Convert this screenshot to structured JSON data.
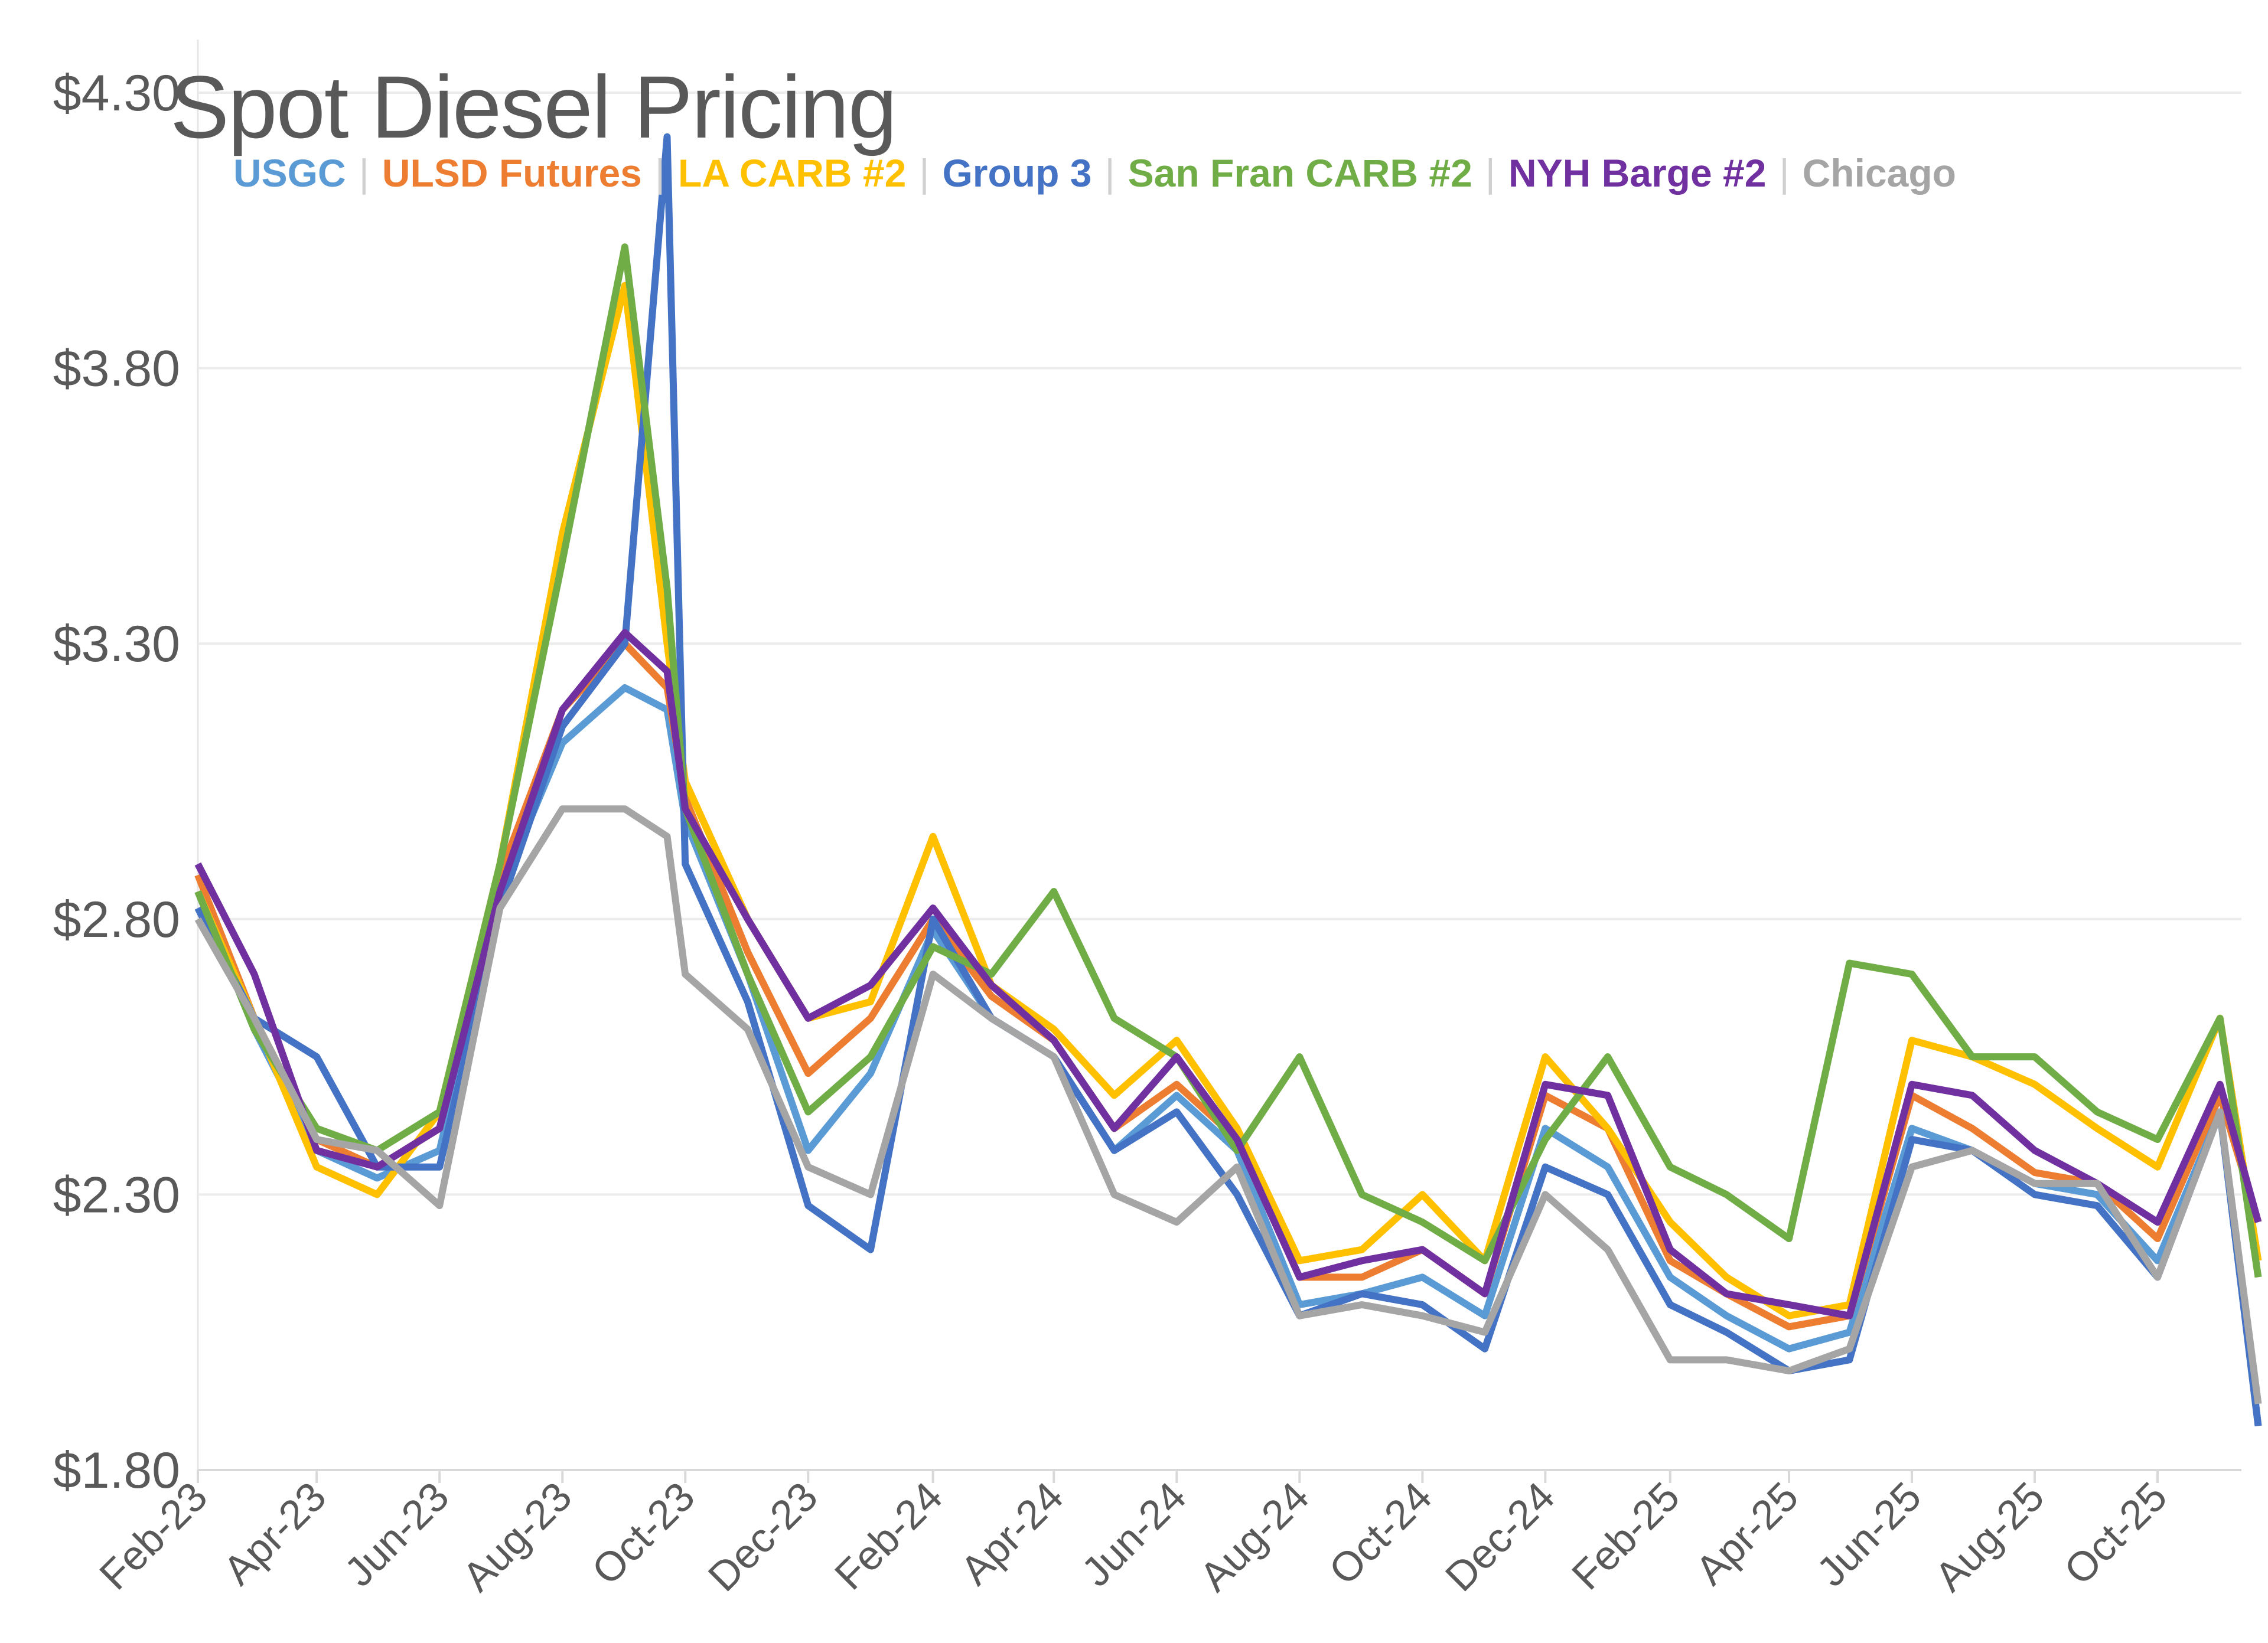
{
  "chart_data": {
    "type": "line",
    "title": "Spot Diesel Pricing",
    "xlabel": "",
    "ylabel": "",
    "ylim": [
      1.8,
      4.3
    ],
    "yticks": [
      "$1.80",
      "$2.30",
      "$2.80",
      "$3.30",
      "$3.80",
      "$4.30"
    ],
    "ytick_values": [
      1.8,
      2.3,
      2.8,
      3.3,
      3.8,
      4.3
    ],
    "xticks": [
      "Feb-23",
      "Apr-23",
      "Jun-23",
      "Aug-23",
      "Oct-23",
      "Dec-23",
      "Feb-24",
      "Apr-24",
      "Jun-24",
      "Aug-24",
      "Oct-24",
      "Dec-24",
      "Feb-25",
      "Apr-25",
      "Jun-25",
      "Aug-25",
      "Oct-25"
    ],
    "xtick_dates": [
      "2023-02-01",
      "2023-04-01",
      "2023-06-01",
      "2023-08-01",
      "2023-10-01",
      "2023-12-01",
      "2024-02-01",
      "2024-04-01",
      "2024-06-01",
      "2024-08-01",
      "2024-10-01",
      "2024-12-01",
      "2025-02-01",
      "2025-04-01",
      "2025-06-01",
      "2025-08-01",
      "2025-10-01"
    ],
    "grid": true,
    "legend_placement": "top-left",
    "x": [
      "2023-02-01",
      "2023-03-01",
      "2023-04-01",
      "2023-05-01",
      "2023-06-01",
      "2023-07-01",
      "2023-08-01",
      "2023-09-01",
      "2023-09-22",
      "2023-10-01",
      "2023-11-01",
      "2023-12-01",
      "2024-01-01",
      "2024-02-01",
      "2024-03-01",
      "2024-04-01",
      "2024-05-01",
      "2024-06-01",
      "2024-07-01",
      "2024-08-01",
      "2024-09-01",
      "2024-10-01",
      "2024-11-01",
      "2024-12-01",
      "2025-01-01",
      "2025-02-01",
      "2025-03-01",
      "2025-04-01",
      "2025-05-01",
      "2025-06-01",
      "2025-07-01",
      "2025-08-01",
      "2025-09-01",
      "2025-10-01",
      "2025-11-01",
      "2025-11-20"
    ],
    "series": [
      {
        "name": "USGC",
        "color": "#5B9BD5",
        "values": [
          2.85,
          2.6,
          2.38,
          2.33,
          2.38,
          2.85,
          3.12,
          3.22,
          3.18,
          2.98,
          2.7,
          2.38,
          2.52,
          2.78,
          2.62,
          2.55,
          2.38,
          2.48,
          2.38,
          2.1,
          2.12,
          2.15,
          2.08,
          2.42,
          2.35,
          2.15,
          2.08,
          2.02,
          2.05,
          2.42,
          2.38,
          2.32,
          2.3,
          2.18,
          2.45,
          1.88
        ]
      },
      {
        "name": "ULSD Futures",
        "color": "#ED7D31",
        "values": [
          2.88,
          2.62,
          2.4,
          2.35,
          2.42,
          2.88,
          3.18,
          3.3,
          3.22,
          3.02,
          2.74,
          2.52,
          2.62,
          2.8,
          2.66,
          2.58,
          2.42,
          2.5,
          2.4,
          2.15,
          2.15,
          2.2,
          2.12,
          2.48,
          2.42,
          2.18,
          2.12,
          2.06,
          2.08,
          2.48,
          2.42,
          2.34,
          2.32,
          2.22,
          2.48,
          2.25
        ]
      },
      {
        "name": "LA CARB #2",
        "color": "#FFC000",
        "values": [
          2.85,
          2.62,
          2.35,
          2.3,
          2.45,
          2.9,
          3.5,
          3.95,
          3.3,
          3.05,
          2.8,
          2.62,
          2.65,
          2.95,
          2.68,
          2.6,
          2.48,
          2.58,
          2.42,
          2.18,
          2.2,
          2.3,
          2.18,
          2.55,
          2.42,
          2.25,
          2.15,
          2.08,
          2.1,
          2.58,
          2.55,
          2.5,
          2.42,
          2.35,
          2.62,
          2.18
        ]
      },
      {
        "name": "Group 3",
        "color": "#4472C4",
        "values": [
          2.82,
          2.62,
          2.55,
          2.35,
          2.35,
          2.82,
          3.15,
          3.3,
          4.22,
          2.9,
          2.65,
          2.28,
          2.2,
          2.8,
          2.62,
          2.55,
          2.38,
          2.45,
          2.3,
          2.08,
          2.12,
          2.1,
          2.02,
          2.35,
          2.3,
          2.1,
          2.05,
          1.98,
          2.0,
          2.4,
          2.38,
          2.3,
          2.28,
          2.15,
          2.45,
          1.88
        ]
      },
      {
        "name": "San Fran CARB #2",
        "color": "#70AD47",
        "values": [
          2.85,
          2.6,
          2.42,
          2.38,
          2.45,
          2.9,
          3.45,
          4.02,
          3.4,
          3.0,
          2.7,
          2.45,
          2.55,
          2.75,
          2.7,
          2.85,
          2.62,
          2.55,
          2.38,
          2.55,
          2.3,
          2.25,
          2.18,
          2.4,
          2.55,
          2.35,
          2.3,
          2.22,
          2.72,
          2.7,
          2.55,
          2.55,
          2.45,
          2.4,
          2.62,
          2.15
        ]
      },
      {
        "name": "NYH Barge #2",
        "color": "#7030A0",
        "values": [
          2.9,
          2.7,
          2.38,
          2.35,
          2.42,
          2.85,
          3.18,
          3.32,
          3.25,
          3.0,
          2.8,
          2.62,
          2.68,
          2.82,
          2.68,
          2.58,
          2.42,
          2.55,
          2.4,
          2.15,
          2.18,
          2.2,
          2.12,
          2.5,
          2.48,
          2.2,
          2.12,
          2.1,
          2.08,
          2.5,
          2.48,
          2.38,
          2.32,
          2.25,
          2.5,
          2.25
        ]
      },
      {
        "name": "Chicago",
        "color": "#A5A5A5",
        "values": [
          2.8,
          2.62,
          2.4,
          2.38,
          2.28,
          2.82,
          3.0,
          3.0,
          2.95,
          2.7,
          2.6,
          2.35,
          2.3,
          2.7,
          2.62,
          2.55,
          2.3,
          2.25,
          2.35,
          2.08,
          2.1,
          2.08,
          2.05,
          2.3,
          2.2,
          2.0,
          2.0,
          1.98,
          2.02,
          2.35,
          2.38,
          2.32,
          2.32,
          2.15,
          2.45,
          1.92
        ]
      }
    ]
  }
}
